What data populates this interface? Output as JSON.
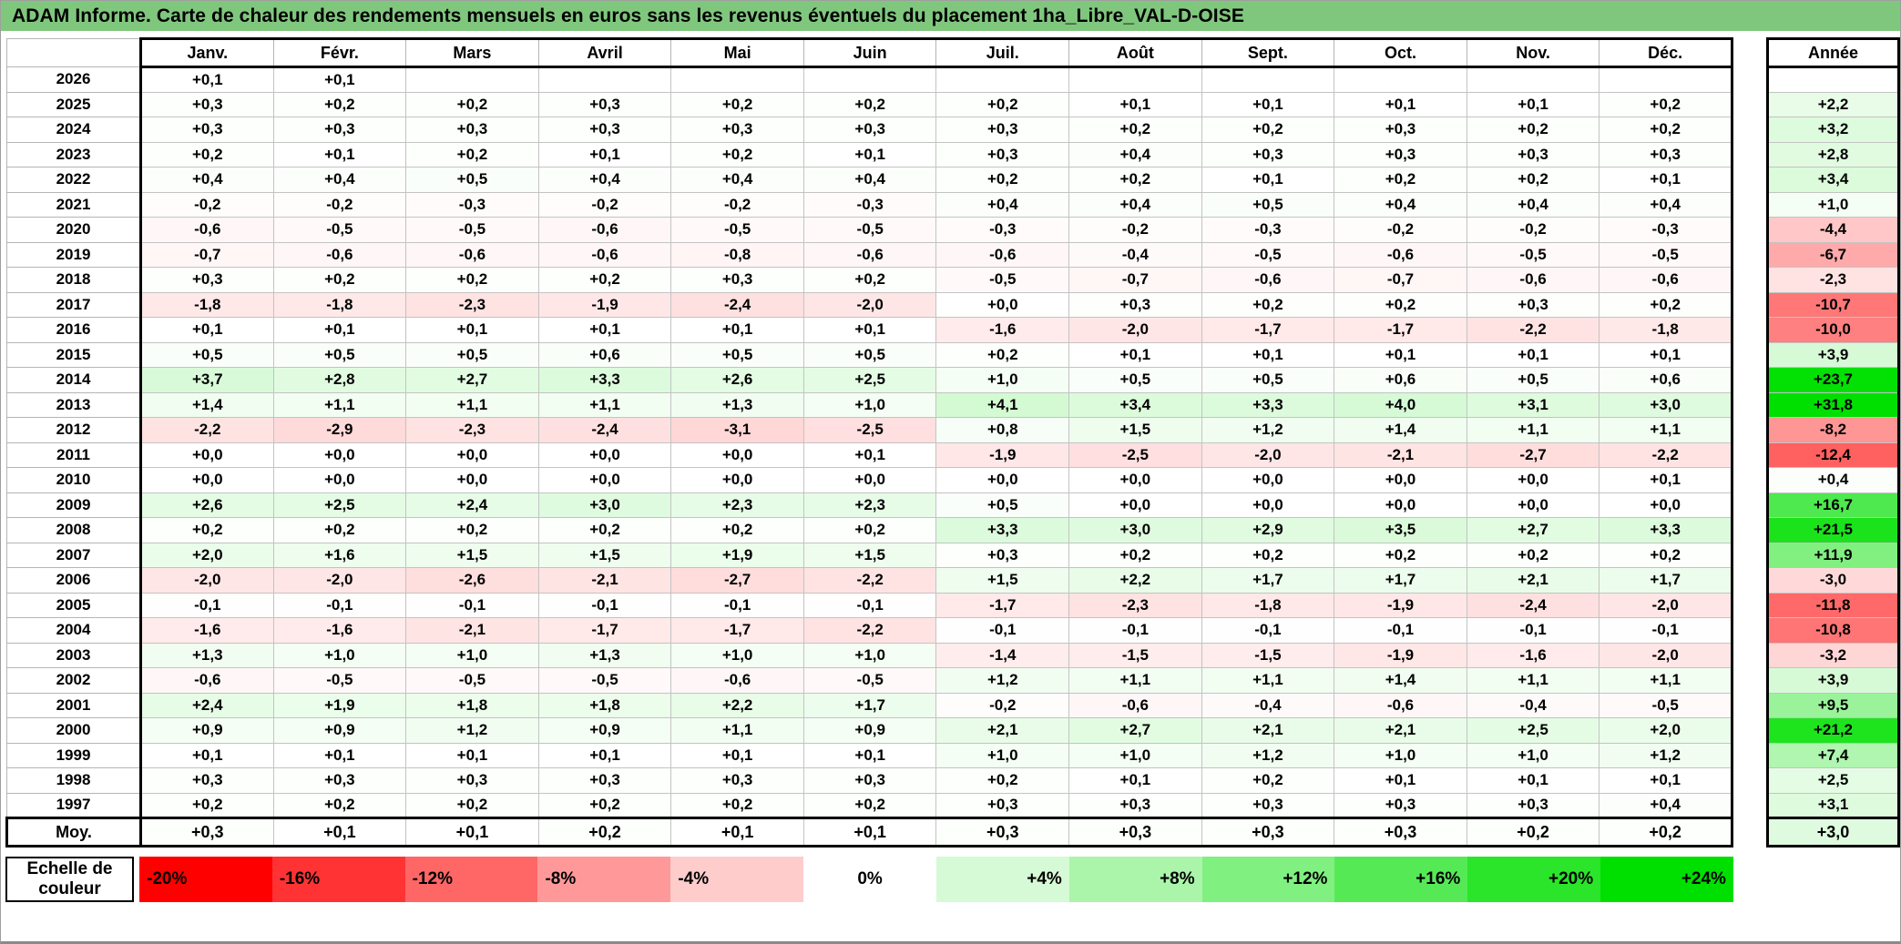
{
  "title": "ADAM Informe. Carte de chaleur des rendements mensuels en euros sans les revenus éventuels du placement 1ha_Libre_VAL-D-OISE",
  "annee_header": "Année",
  "legend": {
    "label": "Echelle de couleur",
    "stops": [
      {
        "label": "-20%",
        "value": -20
      },
      {
        "label": "-16%",
        "value": -16
      },
      {
        "label": "-12%",
        "value": -12
      },
      {
        "label": "-8%",
        "value": -8
      },
      {
        "label": "-4%",
        "value": -4
      },
      {
        "label": "0%",
        "value": 0
      },
      {
        "label": "+4%",
        "value": 4
      },
      {
        "label": "+8%",
        "value": 8
      },
      {
        "label": "+12%",
        "value": 12
      },
      {
        "label": "+16%",
        "value": 16
      },
      {
        "label": "+20%",
        "value": 20
      },
      {
        "label": "+24%",
        "value": 24
      }
    ]
  },
  "colors": {
    "title_bg": "#80C77E",
    "scale_negative_end": "#FF0000",
    "scale_positive_end": "#00E000",
    "scale_neutral": "#FFFFFF",
    "grid_line": "#C3C3C3",
    "thick_border": "#000000"
  },
  "chart_data": {
    "type": "heatmap",
    "title": "ADAM Informe. Carte de chaleur des rendements mensuels en euros sans les revenus éventuels du placement 1ha_Libre_VAL-D-OISE",
    "unit_note": "values displayed as signed French decimals, e.g. +0,3",
    "months": [
      "Janv.",
      "Févr.",
      "Mars",
      "Avril",
      "Mai",
      "Juin",
      "Juil.",
      "Août",
      "Sept.",
      "Oct.",
      "Nov.",
      "Déc."
    ],
    "scale": {
      "min": -20,
      "max": 24,
      "neutral": 0
    },
    "rows": [
      {
        "year": "2026",
        "values": [
          0.1,
          0.1,
          null,
          null,
          null,
          null,
          null,
          null,
          null,
          null,
          null,
          null
        ],
        "annee": null
      },
      {
        "year": "2025",
        "values": [
          0.3,
          0.2,
          0.2,
          0.3,
          0.2,
          0.2,
          0.2,
          0.1,
          0.1,
          0.1,
          0.1,
          0.2
        ],
        "annee": 2.2
      },
      {
        "year": "2024",
        "values": [
          0.3,
          0.3,
          0.3,
          0.3,
          0.3,
          0.3,
          0.3,
          0.2,
          0.2,
          0.3,
          0.2,
          0.2
        ],
        "annee": 3.2
      },
      {
        "year": "2023",
        "values": [
          0.2,
          0.1,
          0.2,
          0.1,
          0.2,
          0.1,
          0.3,
          0.4,
          0.3,
          0.3,
          0.3,
          0.3
        ],
        "annee": 2.8
      },
      {
        "year": "2022",
        "values": [
          0.4,
          0.4,
          0.5,
          0.4,
          0.4,
          0.4,
          0.2,
          0.2,
          0.1,
          0.2,
          0.2,
          0.1
        ],
        "annee": 3.4
      },
      {
        "year": "2021",
        "values": [
          -0.2,
          -0.2,
          -0.3,
          -0.2,
          -0.2,
          -0.3,
          0.4,
          0.4,
          0.5,
          0.4,
          0.4,
          0.4
        ],
        "annee": 1.0
      },
      {
        "year": "2020",
        "values": [
          -0.6,
          -0.5,
          -0.5,
          -0.6,
          -0.5,
          -0.5,
          -0.3,
          -0.2,
          -0.3,
          -0.2,
          -0.2,
          -0.3
        ],
        "annee": -4.4
      },
      {
        "year": "2019",
        "values": [
          -0.7,
          -0.6,
          -0.6,
          -0.6,
          -0.8,
          -0.6,
          -0.6,
          -0.4,
          -0.5,
          -0.6,
          -0.5,
          -0.5
        ],
        "annee": -6.7
      },
      {
        "year": "2018",
        "values": [
          0.3,
          0.2,
          0.2,
          0.2,
          0.3,
          0.2,
          -0.5,
          -0.7,
          -0.6,
          -0.7,
          -0.6,
          -0.6
        ],
        "annee": -2.3
      },
      {
        "year": "2017",
        "values": [
          -1.8,
          -1.8,
          -2.3,
          -1.9,
          -2.4,
          -2.0,
          0.0,
          0.3,
          0.2,
          0.2,
          0.3,
          0.2
        ],
        "annee": -10.7
      },
      {
        "year": "2016",
        "values": [
          0.1,
          0.1,
          0.1,
          0.1,
          0.1,
          0.1,
          -1.6,
          -2.0,
          -1.7,
          -1.7,
          -2.2,
          -1.8
        ],
        "annee": -10.0
      },
      {
        "year": "2015",
        "values": [
          0.5,
          0.5,
          0.5,
          0.6,
          0.5,
          0.5,
          0.2,
          0.1,
          0.1,
          0.1,
          0.1,
          0.1
        ],
        "annee": 3.9
      },
      {
        "year": "2014",
        "values": [
          3.7,
          2.8,
          2.7,
          3.3,
          2.6,
          2.5,
          1.0,
          0.5,
          0.5,
          0.6,
          0.5,
          0.6
        ],
        "annee": 23.7
      },
      {
        "year": "2013",
        "values": [
          1.4,
          1.1,
          1.1,
          1.1,
          1.3,
          1.0,
          4.1,
          3.4,
          3.3,
          4.0,
          3.1,
          3.0
        ],
        "annee": 31.8
      },
      {
        "year": "2012",
        "values": [
          -2.2,
          -2.9,
          -2.3,
          -2.4,
          -3.1,
          -2.5,
          0.8,
          1.5,
          1.2,
          1.4,
          1.1,
          1.1
        ],
        "annee": -8.2
      },
      {
        "year": "2011",
        "values": [
          0.0,
          0.0,
          0.0,
          0.0,
          0.0,
          0.1,
          -1.9,
          -2.5,
          -2.0,
          -2.1,
          -2.7,
          -2.2
        ],
        "annee": -12.4
      },
      {
        "year": "2010",
        "values": [
          0.0,
          0.0,
          0.0,
          0.0,
          0.0,
          0.0,
          0.0,
          0.0,
          0.0,
          0.0,
          0.0,
          0.1
        ],
        "annee": 0.4
      },
      {
        "year": "2009",
        "values": [
          2.6,
          2.5,
          2.4,
          3.0,
          2.3,
          2.3,
          0.5,
          0.0,
          0.0,
          0.0,
          0.0,
          0.0
        ],
        "annee": 16.7
      },
      {
        "year": "2008",
        "values": [
          0.2,
          0.2,
          0.2,
          0.2,
          0.2,
          0.2,
          3.3,
          3.0,
          2.9,
          3.5,
          2.7,
          3.3
        ],
        "annee": 21.5
      },
      {
        "year": "2007",
        "values": [
          2.0,
          1.6,
          1.5,
          1.5,
          1.9,
          1.5,
          0.3,
          0.2,
          0.2,
          0.2,
          0.2,
          0.2
        ],
        "annee": 11.9
      },
      {
        "year": "2006",
        "values": [
          -2.0,
          -2.0,
          -2.6,
          -2.1,
          -2.7,
          -2.2,
          1.5,
          2.2,
          1.7,
          1.7,
          2.1,
          1.7
        ],
        "annee": -3.0
      },
      {
        "year": "2005",
        "values": [
          -0.1,
          -0.1,
          -0.1,
          -0.1,
          -0.1,
          -0.1,
          -1.7,
          -2.3,
          -1.8,
          -1.9,
          -2.4,
          -2.0
        ],
        "annee": -11.8
      },
      {
        "year": "2004",
        "values": [
          -1.6,
          -1.6,
          -2.1,
          -1.7,
          -1.7,
          -2.2,
          -0.1,
          -0.1,
          -0.1,
          -0.1,
          -0.1,
          -0.1
        ],
        "annee": -10.8
      },
      {
        "year": "2003",
        "values": [
          1.3,
          1.0,
          1.0,
          1.3,
          1.0,
          1.0,
          -1.4,
          -1.5,
          -1.5,
          -1.9,
          -1.6,
          -2.0
        ],
        "annee": -3.2
      },
      {
        "year": "2002",
        "values": [
          -0.6,
          -0.5,
          -0.5,
          -0.5,
          -0.6,
          -0.5,
          1.2,
          1.1,
          1.1,
          1.4,
          1.1,
          1.1
        ],
        "annee": 3.9
      },
      {
        "year": "2001",
        "values": [
          2.4,
          1.9,
          1.8,
          1.8,
          2.2,
          1.7,
          -0.2,
          -0.6,
          -0.4,
          -0.6,
          -0.4,
          -0.5
        ],
        "annee": 9.5
      },
      {
        "year": "2000",
        "values": [
          0.9,
          0.9,
          1.2,
          0.9,
          1.1,
          0.9,
          2.1,
          2.7,
          2.1,
          2.1,
          2.5,
          2.0
        ],
        "annee": 21.2
      },
      {
        "year": "1999",
        "values": [
          0.1,
          0.1,
          0.1,
          0.1,
          0.1,
          0.1,
          1.0,
          1.0,
          1.2,
          1.0,
          1.0,
          1.2
        ],
        "annee": 7.4
      },
      {
        "year": "1998",
        "values": [
          0.3,
          0.3,
          0.3,
          0.3,
          0.3,
          0.3,
          0.2,
          0.1,
          0.2,
          0.1,
          0.1,
          0.1
        ],
        "annee": 2.5
      },
      {
        "year": "1997",
        "values": [
          0.2,
          0.2,
          0.2,
          0.2,
          0.2,
          0.2,
          0.3,
          0.3,
          0.3,
          0.3,
          0.3,
          0.4
        ],
        "annee": 3.1
      }
    ],
    "moyenne": {
      "label": "Moy.",
      "values": [
        0.3,
        0.1,
        0.1,
        0.2,
        0.1,
        0.1,
        0.3,
        0.3,
        0.3,
        0.3,
        0.2,
        0.2
      ],
      "annee": 3.0
    }
  }
}
